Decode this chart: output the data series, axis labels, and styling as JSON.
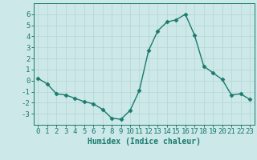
{
  "x": [
    0,
    1,
    2,
    3,
    4,
    5,
    6,
    7,
    8,
    9,
    10,
    11,
    12,
    13,
    14,
    15,
    16,
    17,
    18,
    19,
    20,
    21,
    22,
    23
  ],
  "y": [
    0.2,
    -0.3,
    -1.2,
    -1.3,
    -1.6,
    -1.9,
    -2.1,
    -2.6,
    -3.4,
    -3.5,
    -2.7,
    -0.9,
    2.7,
    4.5,
    5.3,
    5.5,
    6.0,
    4.1,
    1.3,
    0.7,
    0.1,
    -1.3,
    -1.2,
    -1.7
  ],
  "line_color": "#1a7a6e",
  "bg_color": "#cce8e8",
  "grid_color": "#b8d8d8",
  "xlabel": "Humidex (Indice chaleur)",
  "ylim": [
    -4,
    7
  ],
  "xlim": [
    -0.5,
    23.5
  ],
  "yticks": [
    -3,
    -2,
    -1,
    0,
    1,
    2,
    3,
    4,
    5,
    6
  ],
  "xticks": [
    0,
    1,
    2,
    3,
    4,
    5,
    6,
    7,
    8,
    9,
    10,
    11,
    12,
    13,
    14,
    15,
    16,
    17,
    18,
    19,
    20,
    21,
    22,
    23
  ],
  "xlabel_fontsize": 7,
  "tick_fontsize": 6.5,
  "line_width": 1.0,
  "marker_size": 2.5
}
